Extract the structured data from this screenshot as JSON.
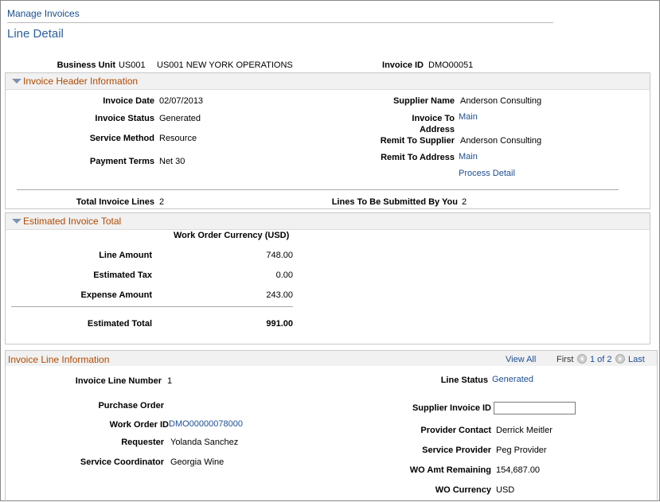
{
  "breadcrumb": "Manage Invoices",
  "page_title": "Line Detail",
  "summary": {
    "business_unit_label": "Business Unit",
    "business_unit_code": "US001",
    "business_unit_name": "US001 NEW YORK OPERATIONS",
    "invoice_id_label": "Invoice ID",
    "invoice_id": "DMO00051"
  },
  "header_section": {
    "title": "Invoice Header Information",
    "invoice_date_label": "Invoice Date",
    "invoice_date": "02/07/2013",
    "invoice_status_label": "Invoice Status",
    "invoice_status": "Generated",
    "service_method_label": "Service Method",
    "service_method": "Resource",
    "payment_terms_label": "Payment Terms",
    "payment_terms": "Net 30",
    "supplier_name_label": "Supplier Name",
    "supplier_name": "Anderson Consulting",
    "invoice_to_address_label_1": "Invoice To",
    "invoice_to_address_label_2": "Address",
    "invoice_to_address": "Main",
    "remit_to_supplier_label": "Remit To Supplier",
    "remit_to_supplier": "Anderson Consulting",
    "remit_to_address_label": "Remit To Address",
    "remit_to_address": "Main",
    "process_detail_link": "Process Detail",
    "total_invoice_lines_label": "Total Invoice Lines",
    "total_invoice_lines": "2",
    "lines_to_submit_label": "Lines To Be Submitted By You",
    "lines_to_submit": "2"
  },
  "estimate_section": {
    "title": "Estimated Invoice Total",
    "currency_header": "Work Order Currency (USD)",
    "line_amount_label": "Line Amount",
    "line_amount": "748.00",
    "estimated_tax_label": "Estimated Tax",
    "estimated_tax": "0.00",
    "expense_amount_label": "Expense Amount",
    "expense_amount": "243.00",
    "estimated_total_label": "Estimated Total",
    "estimated_total": "991.00"
  },
  "line_section": {
    "title": "Invoice Line Information",
    "view_all": "View All",
    "first": "First",
    "pager": "1 of 2",
    "last": "Last",
    "line_number_label": "Invoice Line Number",
    "line_number": "1",
    "purchase_order_label": "Purchase Order",
    "work_order_id_label": "Work Order ID",
    "work_order_id": "DMO00000078000",
    "requester_label": "Requester",
    "requester": "Yolanda Sanchez",
    "service_coordinator_label": "Service Coordinator",
    "service_coordinator": "Georgia Wine",
    "line_status_label": "Line Status",
    "line_status": "Generated",
    "supplier_invoice_id_label": "Supplier Invoice ID",
    "supplier_invoice_id": "",
    "provider_contact_label": "Provider Contact",
    "provider_contact": "Derrick Meitler",
    "service_provider_label": "Service Provider",
    "service_provider": "Peg Provider",
    "wo_amt_remaining_label": "WO Amt Remaining",
    "wo_amt_remaining": "154,687.00",
    "wo_currency_label": "WO Currency",
    "wo_currency": "USD"
  },
  "colors": {
    "link": "#1c4f94",
    "section_title": "#b04a00",
    "section_header_bg": "#f1f1f1"
  }
}
